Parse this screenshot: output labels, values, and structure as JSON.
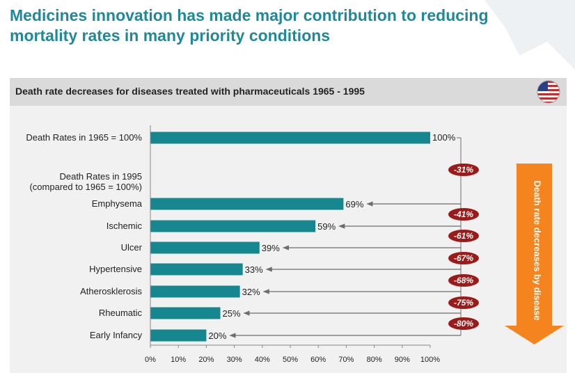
{
  "title": "Medicines innovation has made major contribution to reducing mortality rates in many priority conditions",
  "panel": {
    "header": "Death rate decreases for diseases treated with pharmaceuticals 1965 - 1995",
    "flag_icon": "us-flag-icon"
  },
  "side_arrow_label": "Death rate decreases by disease",
  "colors": {
    "title": "#1f8a97",
    "bar": "#16878f",
    "badge": "#9b1b1b",
    "arrow": "#f5841f"
  },
  "chart_data": {
    "type": "bar",
    "orientation": "horizontal",
    "xlim": [
      0,
      100
    ],
    "x_ticks": [
      "0%",
      "10%",
      "20%",
      "30%",
      "40%",
      "50%",
      "60%",
      "70%",
      "80%",
      "90%",
      "100%"
    ],
    "baseline": {
      "category": "Death Rates in 1965 = 100%",
      "value": 100,
      "label": "100%"
    },
    "group_label": [
      "Death Rates in 1995",
      "(compared to 1965 = 100%)"
    ],
    "categories": [
      "Emphysema",
      "Ischemic",
      "Ulcer",
      "Hypertensive",
      "Atherosklerosis",
      "Rheumatic",
      "Early Infancy"
    ],
    "values": [
      69,
      59,
      39,
      33,
      32,
      25,
      20
    ],
    "value_labels": [
      "69%",
      "59%",
      "39%",
      "33%",
      "32%",
      "25%",
      "20%"
    ],
    "decreases": [
      "-31%",
      "-41%",
      "-61%",
      "-67%",
      "-68%",
      "-75%",
      "-80%"
    ]
  }
}
